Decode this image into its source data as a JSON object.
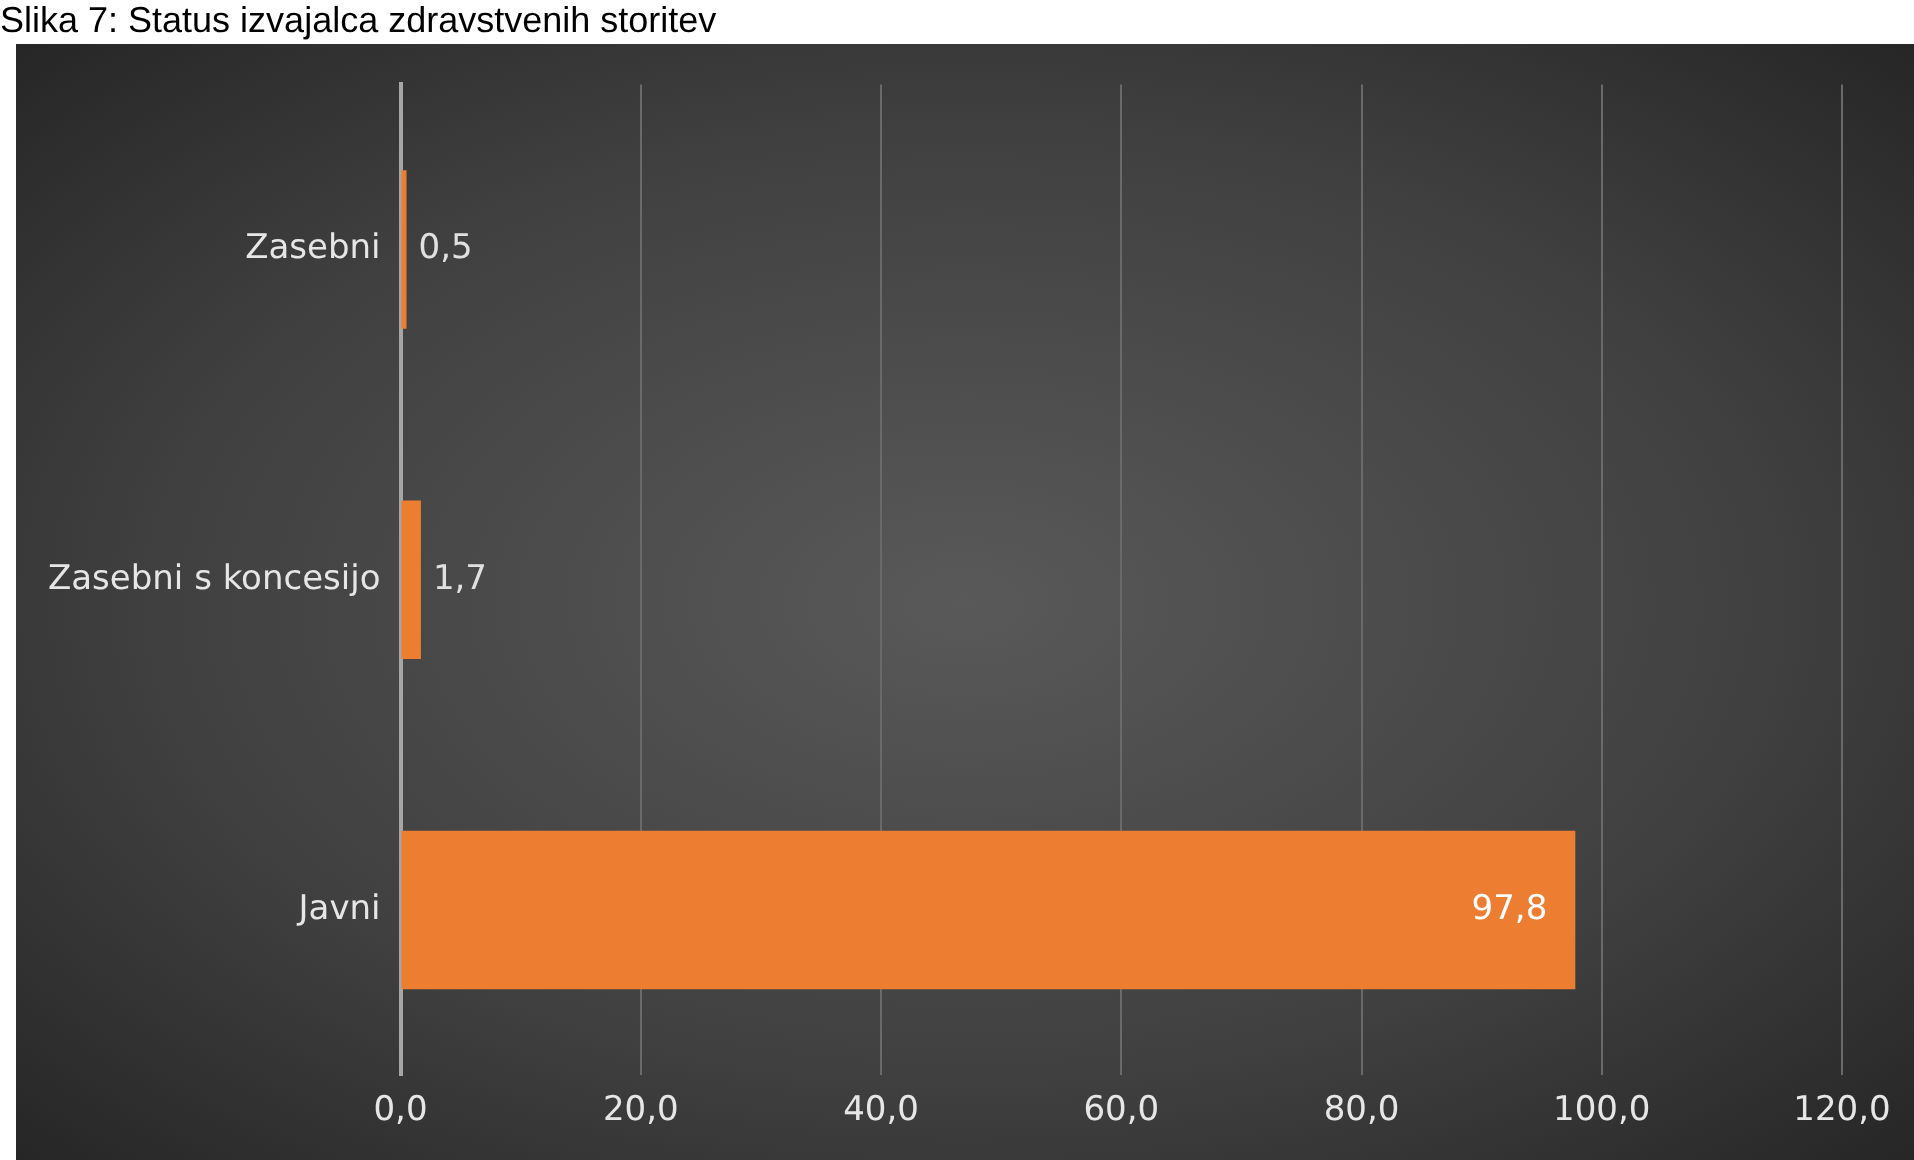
{
  "chart_data": {
    "type": "bar",
    "orientation": "horizontal",
    "title": "Slika 7: Status izvajalca zdravstvenih storitev",
    "categories": [
      "Zasebni",
      "Zasebni s koncesijo",
      "Javni"
    ],
    "values": [
      0.5,
      1.7,
      97.8
    ],
    "color": "#ed7d31",
    "value_labels": [
      "0,5",
      "1,7",
      "97,8"
    ],
    "xlim": [
      0,
      120
    ],
    "xticks": [
      {
        "value": 0,
        "label": "0,0"
      },
      {
        "value": 20,
        "label": "20,0"
      },
      {
        "value": 40,
        "label": "40,0"
      },
      {
        "value": 60,
        "label": "60,0"
      },
      {
        "value": 80,
        "label": "80,0"
      },
      {
        "value": 100,
        "label": "100,0"
      },
      {
        "value": 120,
        "label": "120,0"
      }
    ],
    "grid": "x",
    "legend": false
  }
}
